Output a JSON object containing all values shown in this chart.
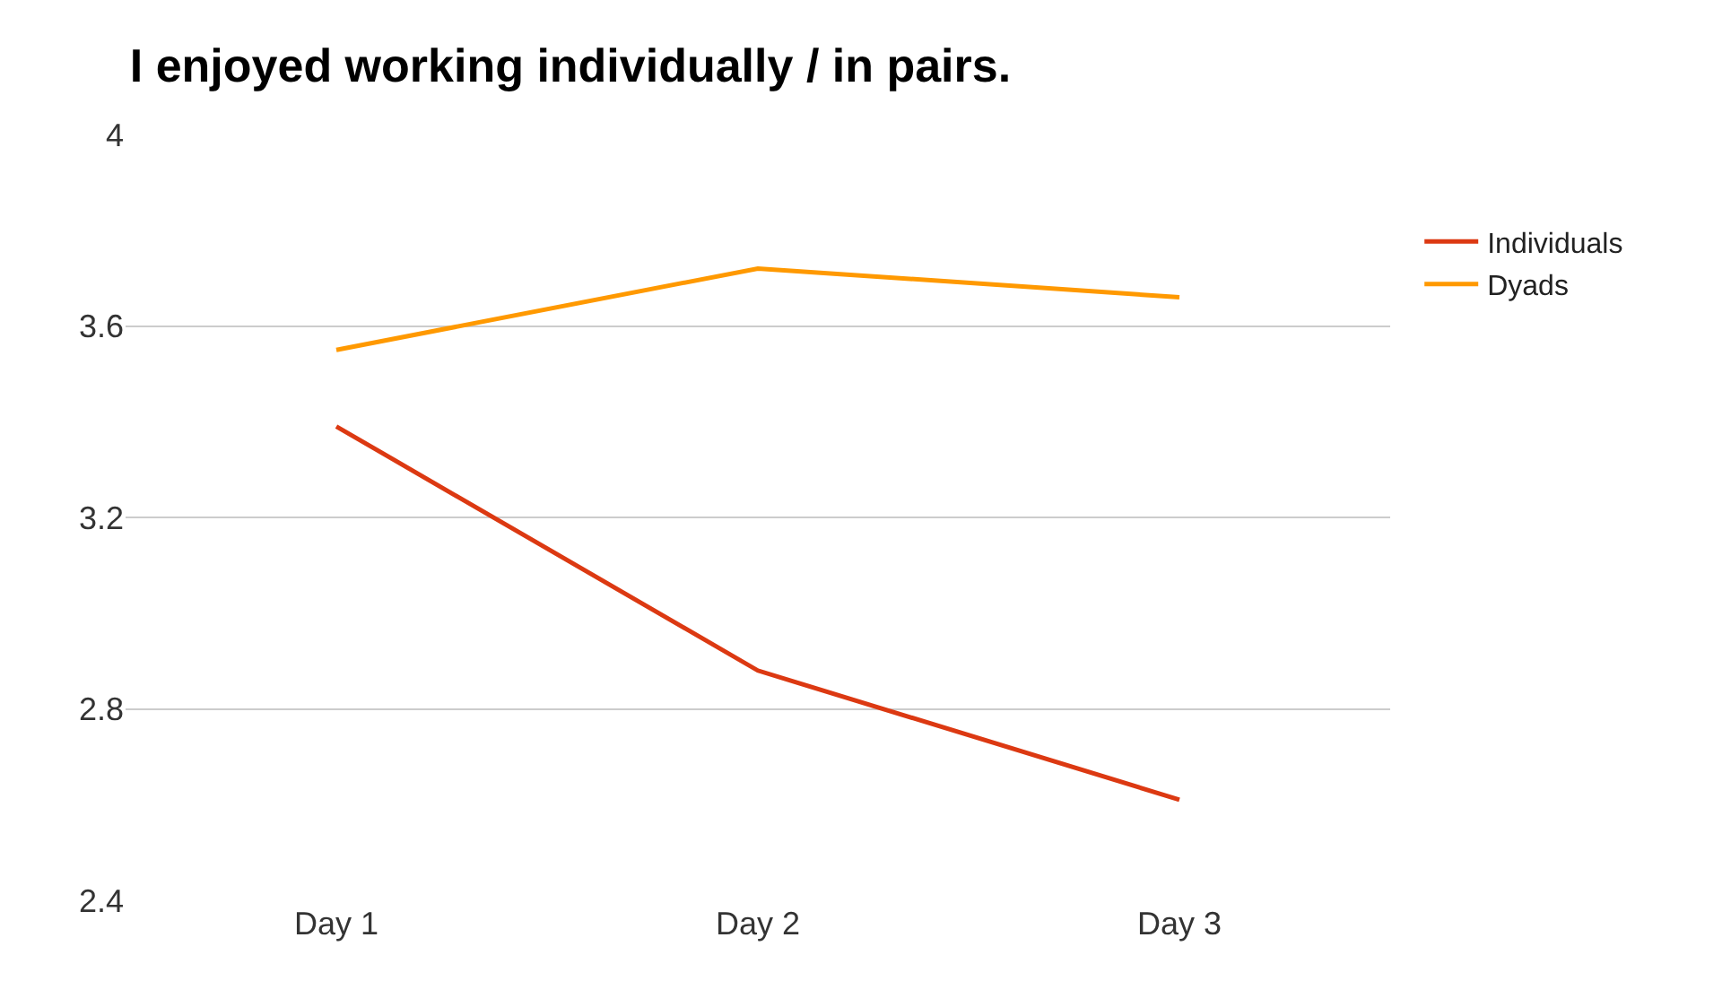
{
  "chart_data": {
    "type": "line",
    "title": "I enjoyed working individually / in pairs.",
    "categories": [
      "Day 1",
      "Day 2",
      "Day 3"
    ],
    "series": [
      {
        "name": "Individuals",
        "color": "#dc3912",
        "values": [
          3.39,
          2.88,
          2.61
        ]
      },
      {
        "name": "Dyads",
        "color": "#ff9900",
        "values": [
          3.55,
          3.72,
          3.66
        ]
      }
    ],
    "ylim": [
      2.4,
      4
    ],
    "yticks": [
      2.4,
      2.8,
      3.2,
      3.6,
      4
    ],
    "grid": "y",
    "legend": "right",
    "marker": "none",
    "line_style": "solid"
  }
}
